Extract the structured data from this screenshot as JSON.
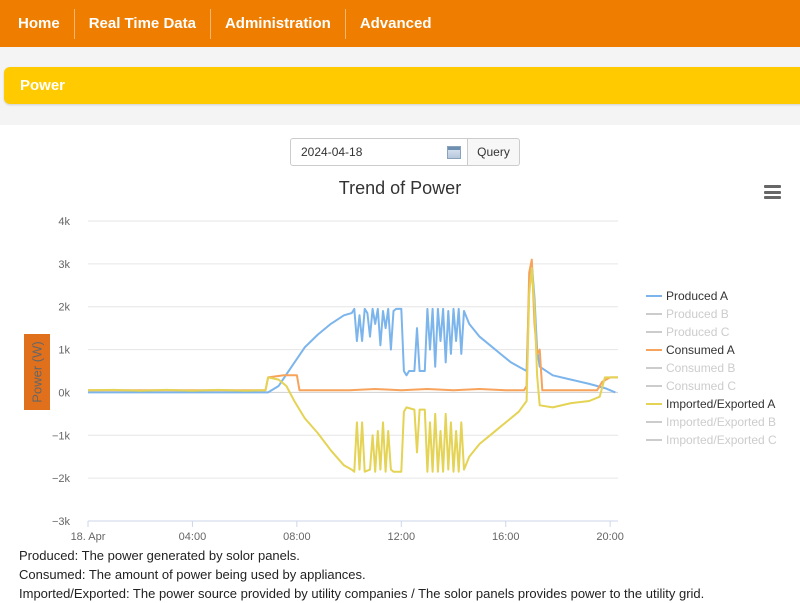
{
  "nav": {
    "items": [
      {
        "label": "Home"
      },
      {
        "label": "Real Time Data"
      },
      {
        "label": "Administration"
      },
      {
        "label": "Advanced"
      }
    ]
  },
  "section": {
    "title": "Power"
  },
  "query": {
    "date_value": "2024-04-18",
    "button_label": "Query"
  },
  "chart_data": {
    "type": "line",
    "title": "Trend of Power",
    "ylabel": "Power (W)",
    "xlabel": "",
    "ylim": [
      -3000,
      4000
    ],
    "yticks": [
      {
        "value": 4000,
        "label": "4k"
      },
      {
        "value": 3000,
        "label": "3k"
      },
      {
        "value": 2000,
        "label": "2k"
      },
      {
        "value": 1000,
        "label": "1k"
      },
      {
        "value": 0,
        "label": "0k"
      },
      {
        "value": -1000,
        "label": "−1k"
      },
      {
        "value": -2000,
        "label": "−2k"
      },
      {
        "value": -3000,
        "label": "−3k"
      }
    ],
    "xlim_hours": [
      0,
      20.3
    ],
    "xticks": [
      {
        "value": 0,
        "label": "18. Apr"
      },
      {
        "value": 4,
        "label": "04:00"
      },
      {
        "value": 8,
        "label": "08:00"
      },
      {
        "value": 12,
        "label": "12:00"
      },
      {
        "value": 16,
        "label": "16:00"
      },
      {
        "value": 20,
        "label": "20:00"
      }
    ],
    "grid": true,
    "legend_position": "right",
    "series": [
      {
        "name": "Produced A",
        "color": "#7cb5ec",
        "visible": true,
        "points": [
          [
            0,
            0
          ],
          [
            6.9,
            0
          ],
          [
            7.3,
            150
          ],
          [
            7.8,
            600
          ],
          [
            8.3,
            1050
          ],
          [
            8.8,
            1350
          ],
          [
            9.3,
            1600
          ],
          [
            9.8,
            1800
          ],
          [
            10.1,
            1850
          ],
          [
            10.2,
            1950
          ],
          [
            10.3,
            1200
          ],
          [
            10.4,
            1800
          ],
          [
            10.5,
            1200
          ],
          [
            10.6,
            1950
          ],
          [
            10.7,
            1850
          ],
          [
            10.8,
            1300
          ],
          [
            10.9,
            1950
          ],
          [
            11.0,
            1600
          ],
          [
            11.1,
            1950
          ],
          [
            11.2,
            1100
          ],
          [
            11.3,
            1900
          ],
          [
            11.4,
            1500
          ],
          [
            11.5,
            1950
          ],
          [
            11.6,
            1000
          ],
          [
            11.7,
            1900
          ],
          [
            11.8,
            1950
          ],
          [
            12.0,
            1950
          ],
          [
            12.1,
            500
          ],
          [
            12.2,
            400
          ],
          [
            12.3,
            500
          ],
          [
            12.5,
            500
          ],
          [
            12.6,
            1500
          ],
          [
            12.7,
            500
          ],
          [
            12.9,
            500
          ],
          [
            13.0,
            1950
          ],
          [
            13.1,
            1000
          ],
          [
            13.2,
            1950
          ],
          [
            13.3,
            600
          ],
          [
            13.4,
            1950
          ],
          [
            13.5,
            1200
          ],
          [
            13.6,
            1950
          ],
          [
            13.7,
            700
          ],
          [
            13.8,
            1900
          ],
          [
            13.9,
            900
          ],
          [
            14.0,
            1950
          ],
          [
            14.1,
            1200
          ],
          [
            14.2,
            1950
          ],
          [
            14.3,
            900
          ],
          [
            14.4,
            1900
          ],
          [
            14.6,
            1600
          ],
          [
            15.0,
            1300
          ],
          [
            15.4,
            1100
          ],
          [
            15.8,
            900
          ],
          [
            16.2,
            700
          ],
          [
            16.5,
            600
          ],
          [
            16.8,
            500
          ],
          [
            16.9,
            2400
          ],
          [
            17.0,
            3000
          ],
          [
            17.1,
            2200
          ],
          [
            17.2,
            1000
          ],
          [
            17.3,
            600
          ],
          [
            17.8,
            400
          ],
          [
            18.5,
            300
          ],
          [
            19.2,
            200
          ],
          [
            19.8,
            100
          ],
          [
            20.2,
            0
          ]
        ]
      },
      {
        "name": "Produced B",
        "color": "#cccccc",
        "visible": false,
        "points": []
      },
      {
        "name": "Produced C",
        "color": "#cccccc",
        "visible": false,
        "points": []
      },
      {
        "name": "Consumed A",
        "color": "#f7a35c",
        "visible": true,
        "points": [
          [
            0,
            50
          ],
          [
            6.8,
            50
          ],
          [
            6.9,
            350
          ],
          [
            7.5,
            400
          ],
          [
            8.0,
            400
          ],
          [
            8.1,
            50
          ],
          [
            10.0,
            50
          ],
          [
            11.0,
            80
          ],
          [
            12.0,
            50
          ],
          [
            13.0,
            80
          ],
          [
            14.0,
            50
          ],
          [
            15.0,
            80
          ],
          [
            16.0,
            50
          ],
          [
            16.7,
            50
          ],
          [
            16.8,
            150
          ],
          [
            16.9,
            2800
          ],
          [
            17.0,
            3100
          ],
          [
            17.1,
            1600
          ],
          [
            17.2,
            900
          ],
          [
            17.3,
            1000
          ],
          [
            17.4,
            50
          ],
          [
            18.0,
            50
          ],
          [
            19.5,
            50
          ],
          [
            19.7,
            250
          ],
          [
            20.0,
            350
          ],
          [
            20.3,
            350
          ]
        ]
      },
      {
        "name": "Consumed B",
        "color": "#cccccc",
        "visible": false,
        "points": []
      },
      {
        "name": "Consumed C",
        "color": "#cccccc",
        "visible": false,
        "points": []
      },
      {
        "name": "Imported/Exported A",
        "color": "#e4d354",
        "visible": true,
        "points": [
          [
            0,
            50
          ],
          [
            1.0,
            60
          ],
          [
            2.0,
            40
          ],
          [
            3.0,
            60
          ],
          [
            4.0,
            40
          ],
          [
            5.0,
            60
          ],
          [
            6.0,
            40
          ],
          [
            6.8,
            50
          ],
          [
            6.9,
            350
          ],
          [
            7.3,
            300
          ],
          [
            7.6,
            150
          ],
          [
            7.9,
            -200
          ],
          [
            8.3,
            -600
          ],
          [
            8.8,
            -950
          ],
          [
            9.3,
            -1350
          ],
          [
            9.8,
            -1700
          ],
          [
            10.1,
            -1800
          ],
          [
            10.2,
            -1850
          ],
          [
            10.3,
            -700
          ],
          [
            10.4,
            -1800
          ],
          [
            10.5,
            -700
          ],
          [
            10.6,
            -1850
          ],
          [
            10.8,
            -1800
          ],
          [
            10.9,
            -1000
          ],
          [
            11.0,
            -1850
          ],
          [
            11.1,
            -900
          ],
          [
            11.2,
            -1800
          ],
          [
            11.3,
            -700
          ],
          [
            11.4,
            -1850
          ],
          [
            11.5,
            -900
          ],
          [
            11.6,
            -1800
          ],
          [
            11.7,
            -1850
          ],
          [
            12.0,
            -1850
          ],
          [
            12.1,
            -450
          ],
          [
            12.2,
            -350
          ],
          [
            12.5,
            -400
          ],
          [
            12.6,
            -1400
          ],
          [
            12.7,
            -400
          ],
          [
            12.9,
            -400
          ],
          [
            13.0,
            -1850
          ],
          [
            13.1,
            -700
          ],
          [
            13.2,
            -1850
          ],
          [
            13.3,
            -500
          ],
          [
            13.4,
            -1850
          ],
          [
            13.5,
            -900
          ],
          [
            13.6,
            -1850
          ],
          [
            13.7,
            -500
          ],
          [
            13.8,
            -1800
          ],
          [
            13.9,
            -700
          ],
          [
            14.0,
            -1850
          ],
          [
            14.1,
            -900
          ],
          [
            14.2,
            -1850
          ],
          [
            14.3,
            -700
          ],
          [
            14.4,
            -1800
          ],
          [
            14.6,
            -1500
          ],
          [
            15.0,
            -1200
          ],
          [
            15.4,
            -1000
          ],
          [
            15.8,
            -800
          ],
          [
            16.2,
            -600
          ],
          [
            16.5,
            -450
          ],
          [
            16.8,
            -200
          ],
          [
            16.9,
            2300
          ],
          [
            17.0,
            2900
          ],
          [
            17.1,
            2000
          ],
          [
            17.2,
            400
          ],
          [
            17.3,
            -300
          ],
          [
            17.8,
            -350
          ],
          [
            18.5,
            -250
          ],
          [
            19.2,
            -200
          ],
          [
            19.6,
            -100
          ],
          [
            19.8,
            350
          ],
          [
            20.3,
            350
          ]
        ]
      },
      {
        "name": "Imported/Exported B",
        "color": "#cccccc",
        "visible": false,
        "points": []
      },
      {
        "name": "Imported/Exported C",
        "color": "#cccccc",
        "visible": false,
        "points": []
      }
    ]
  },
  "notes": [
    "Produced: The power generated by solor panels.",
    "Consumed: The amount of power being used by appliances.",
    "Imported/Exported: The power source provided by utility companies / The solor panels provides power to the utility grid."
  ]
}
